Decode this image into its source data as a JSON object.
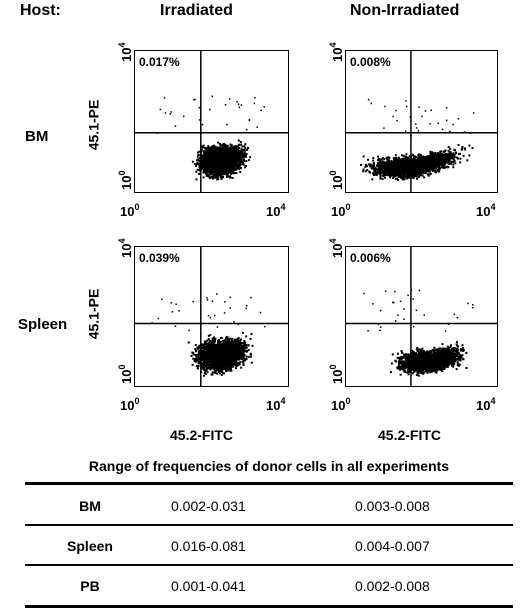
{
  "header": {
    "host": "Host:",
    "irradiated": "Irradiated",
    "non_irradiated": "Non-Irradiated"
  },
  "rows": {
    "bm": "BM",
    "spleen": "Spleen"
  },
  "axes": {
    "y": "45.1-PE",
    "x": "45.2-FITC",
    "tick_base": "10",
    "tick_lo": "0",
    "tick_hi": "4"
  },
  "plots": {
    "bm_irr": {
      "pct": "0.017%"
    },
    "bm_non": {
      "pct": "0.008%"
    },
    "spleen_irr": {
      "pct": "0.039%"
    },
    "spleen_non": {
      "pct": "0.006%"
    }
  },
  "table": {
    "title": "Range of frequencies of donor cells in all experiments",
    "rows": [
      {
        "label": "BM",
        "irradiated": "0.002-0.031",
        "non_irradiated": "0.003-0.008"
      },
      {
        "label": "Spleen",
        "irradiated": "0.016-0.081",
        "non_irradiated": "0.004-0.007"
      },
      {
        "label": "PB",
        "irradiated": "0.001-0.041",
        "non_irradiated": "0.002-0.008"
      }
    ]
  },
  "colors": {
    "ink": "#000000",
    "background": "#ffffff"
  }
}
